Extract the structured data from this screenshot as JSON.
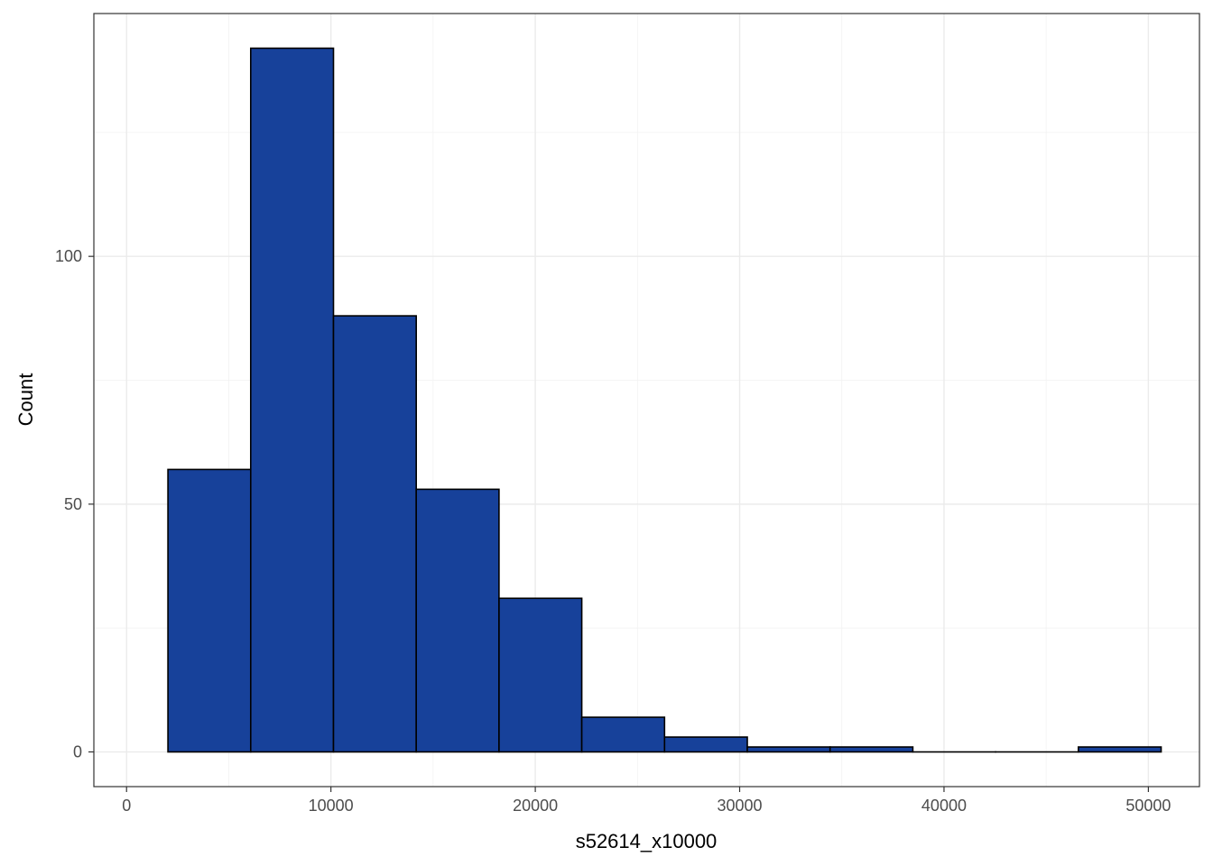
{
  "chart_data": {
    "type": "histogram",
    "xlabel": "s52614_x10000",
    "ylabel": "Count",
    "xlim": [
      -1600,
      52500
    ],
    "ylim": [
      -7,
      149
    ],
    "x_ticks": [
      0,
      10000,
      20000,
      30000,
      40000,
      50000
    ],
    "x_minor_ticks": [
      5000,
      15000,
      25000,
      35000,
      45000
    ],
    "y_ticks": [
      0,
      50,
      100
    ],
    "y_minor_ticks": [
      25,
      75,
      125
    ],
    "bins": [
      {
        "x0": 2025,
        "x1": 6075,
        "count": 57
      },
      {
        "x0": 6075,
        "x1": 10125,
        "count": 142
      },
      {
        "x0": 10125,
        "x1": 14175,
        "count": 88
      },
      {
        "x0": 14175,
        "x1": 18225,
        "count": 53
      },
      {
        "x0": 18225,
        "x1": 22275,
        "count": 31
      },
      {
        "x0": 22275,
        "x1": 26325,
        "count": 7
      },
      {
        "x0": 26325,
        "x1": 30375,
        "count": 3
      },
      {
        "x0": 30375,
        "x1": 34425,
        "count": 1
      },
      {
        "x0": 34425,
        "x1": 38475,
        "count": 1
      },
      {
        "x0": 38475,
        "x1": 42525,
        "count": 0
      },
      {
        "x0": 42525,
        "x1": 46575,
        "count": 0
      },
      {
        "x0": 46575,
        "x1": 50625,
        "count": 1
      }
    ],
    "fill_color": "#17419A",
    "outline_color": "#000000",
    "grid": true,
    "legend": "none"
  }
}
